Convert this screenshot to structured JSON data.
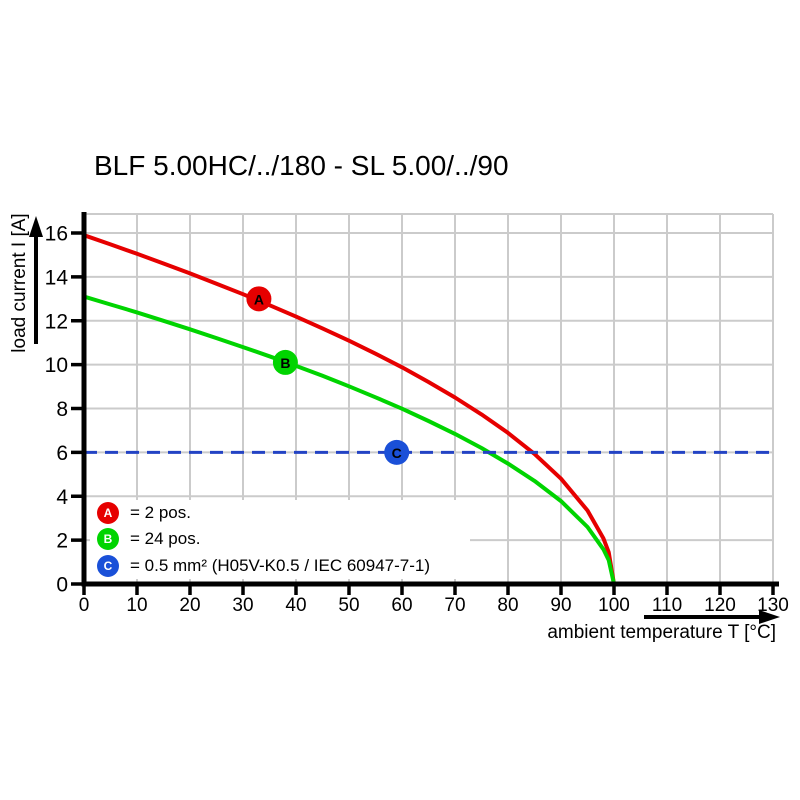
{
  "title": "BLF 5.00HC/../180 - SL 5.00/../90",
  "chart_data": {
    "type": "line",
    "title": "BLF 5.00HC/../180 - SL 5.00/../90",
    "xlabel": "ambient temperature T [°C]",
    "ylabel": "load current I [A]",
    "xlim": [
      0,
      130
    ],
    "ylim": [
      0,
      16
    ],
    "xticks": [
      0,
      10,
      20,
      30,
      40,
      50,
      60,
      70,
      80,
      90,
      100,
      110,
      120,
      130
    ],
    "yticks": [
      0,
      2,
      4,
      6,
      8,
      10,
      12,
      14,
      16
    ],
    "grid": true,
    "grid_color": "#cbcbcb",
    "axis_color": "#000000",
    "legend_position": "bottom-left",
    "series": [
      {
        "id": "A",
        "legend": "= 2 pos.",
        "color": "#e60000",
        "style": "solid",
        "marker": {
          "letter": "A",
          "x": 33,
          "y": 13,
          "color": "#e60000",
          "text_color": "#ffffff"
        },
        "points": [
          [
            0,
            15.9
          ],
          [
            5,
            15.48
          ],
          [
            10,
            15.05
          ],
          [
            15,
            14.61
          ],
          [
            20,
            14.16
          ],
          [
            25,
            13.69
          ],
          [
            30,
            13.21
          ],
          [
            35,
            12.71
          ],
          [
            40,
            12.19
          ],
          [
            45,
            11.65
          ],
          [
            50,
            11.09
          ],
          [
            55,
            10.5
          ],
          [
            60,
            9.88
          ],
          [
            65,
            9.21
          ],
          [
            70,
            8.5
          ],
          [
            75,
            7.73
          ],
          [
            80,
            6.89
          ],
          [
            85,
            5.93
          ],
          [
            90,
            4.8
          ],
          [
            95,
            3.35
          ],
          [
            98,
            2.08
          ],
          [
            99,
            1.45
          ],
          [
            100,
            0
          ]
        ]
      },
      {
        "id": "B",
        "legend": "= 24 pos.",
        "color": "#00d400",
        "style": "solid",
        "marker": {
          "letter": "B",
          "x": 38,
          "y": 10.1,
          "color": "#00d400",
          "text_color": "#ffffff"
        },
        "points": [
          [
            0,
            13.1
          ],
          [
            5,
            12.74
          ],
          [
            10,
            12.38
          ],
          [
            15,
            12.0
          ],
          [
            20,
            11.61
          ],
          [
            25,
            11.21
          ],
          [
            30,
            10.8
          ],
          [
            35,
            10.38
          ],
          [
            40,
            9.94
          ],
          [
            45,
            9.49
          ],
          [
            50,
            9.01
          ],
          [
            55,
            8.51
          ],
          [
            60,
            7.99
          ],
          [
            65,
            7.43
          ],
          [
            70,
            6.84
          ],
          [
            75,
            6.2
          ],
          [
            80,
            5.49
          ],
          [
            85,
            4.7
          ],
          [
            90,
            3.78
          ],
          [
            95,
            2.6
          ],
          [
            98,
            1.58
          ],
          [
            99,
            1.09
          ],
          [
            100,
            0
          ]
        ]
      },
      {
        "id": "C",
        "legend": "= 0.5 mm² (H05V-K0.5 / IEC 60947-7-1)",
        "color": "#2343c4",
        "style": "dashed",
        "marker": {
          "letter": "C",
          "x": 59,
          "y": 6,
          "color": "#1a50d8",
          "text_color": "#ffffff"
        },
        "points": [
          [
            0,
            6
          ],
          [
            130,
            6
          ]
        ]
      }
    ]
  }
}
